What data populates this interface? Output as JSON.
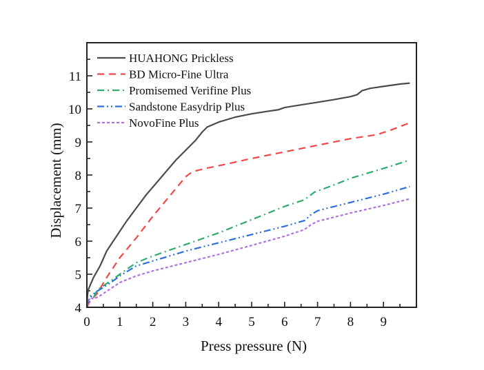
{
  "chart_data": {
    "type": "line",
    "title": "",
    "xlabel": "Press pressure (N)",
    "ylabel": "Displacement (mm)",
    "xlim": [
      0,
      10
    ],
    "ylim": [
      4,
      12
    ],
    "xticks": [
      0,
      1,
      2,
      3,
      4,
      5,
      6,
      7,
      8,
      9
    ],
    "yticks": [
      4,
      5,
      6,
      7,
      8,
      9,
      10,
      11
    ],
    "x_minor_step": 0.5,
    "y_minor_step": 0.5,
    "grid": false,
    "legend_position": "top-left",
    "series": [
      {
        "name": "HUAHONG Prickless",
        "color": "#4a4a4a",
        "dash": "solid",
        "x": [
          0,
          0.02,
          0.05,
          0.2,
          0.4,
          0.6,
          0.8,
          1.0,
          1.2,
          1.5,
          1.8,
          2.1,
          2.4,
          2.7,
          3.0,
          3.3,
          3.5,
          3.65,
          4.0,
          4.5,
          5.0,
          5.5,
          5.8,
          6.0,
          6.5,
          7.0,
          7.5,
          8.0,
          8.2,
          8.35,
          8.6,
          9.0,
          9.5,
          9.8
        ],
        "y": [
          4.05,
          4.4,
          4.55,
          4.9,
          5.25,
          5.7,
          6.0,
          6.3,
          6.6,
          7.0,
          7.4,
          7.75,
          8.1,
          8.45,
          8.75,
          9.05,
          9.3,
          9.45,
          9.6,
          9.75,
          9.85,
          9.93,
          9.97,
          10.04,
          10.12,
          10.2,
          10.28,
          10.37,
          10.43,
          10.55,
          10.62,
          10.68,
          10.75,
          10.78
        ]
      },
      {
        "name": "BD Micro-Fine Ultra",
        "color": "#f04848",
        "dash": "dashed",
        "x": [
          0,
          0.1,
          0.3,
          0.6,
          1.0,
          1.5,
          2.0,
          2.5,
          3.0,
          3.2,
          3.6,
          4.0,
          5.0,
          6.0,
          7.0,
          8.0,
          8.8,
          9.2,
          9.8
        ],
        "y": [
          4.0,
          4.2,
          4.4,
          4.9,
          5.5,
          6.1,
          6.75,
          7.35,
          7.95,
          8.1,
          8.2,
          8.28,
          8.5,
          8.7,
          8.9,
          9.1,
          9.22,
          9.35,
          9.58
        ]
      },
      {
        "name": "Promisemed Verifine Plus",
        "color": "#2eaa6a",
        "dash": "dashdot",
        "x": [
          0,
          0.1,
          0.2,
          0.3,
          0.5,
          0.8,
          1.0,
          1.5,
          2.0,
          3.0,
          4.0,
          5.0,
          6.0,
          6.6,
          6.8,
          6.9,
          7.5,
          8.0,
          9.0,
          9.8
        ],
        "y": [
          4.05,
          4.35,
          4.28,
          4.5,
          4.65,
          4.85,
          5.0,
          5.35,
          5.55,
          5.9,
          6.25,
          6.65,
          7.05,
          7.25,
          7.4,
          7.48,
          7.7,
          7.9,
          8.2,
          8.45
        ]
      },
      {
        "name": "Sandstone Easydrip Plus",
        "color": "#2a6fe0",
        "dash": "dashdotdot",
        "x": [
          0,
          0.1,
          0.25,
          0.5,
          0.8,
          1.0,
          1.5,
          2.0,
          3.0,
          4.0,
          5.0,
          6.0,
          6.6,
          6.8,
          7.0,
          8.0,
          9.0,
          9.8
        ],
        "y": [
          4.05,
          4.3,
          4.45,
          4.6,
          4.8,
          4.95,
          5.25,
          5.4,
          5.7,
          5.95,
          6.2,
          6.45,
          6.62,
          6.8,
          6.92,
          7.17,
          7.42,
          7.65
        ]
      },
      {
        "name": "NovoFine Plus",
        "color": "#b070e0",
        "dash": "dotted",
        "x": [
          0,
          0.1,
          0.2,
          0.4,
          0.7,
          1.0,
          1.5,
          2.0,
          3.0,
          4.0,
          5.0,
          6.0,
          6.6,
          6.8,
          7.0,
          8.0,
          9.0,
          9.8
        ],
        "y": [
          4.05,
          4.3,
          4.25,
          4.35,
          4.55,
          4.75,
          4.95,
          5.1,
          5.35,
          5.6,
          5.87,
          6.15,
          6.35,
          6.5,
          6.6,
          6.85,
          7.08,
          7.28
        ]
      }
    ]
  }
}
